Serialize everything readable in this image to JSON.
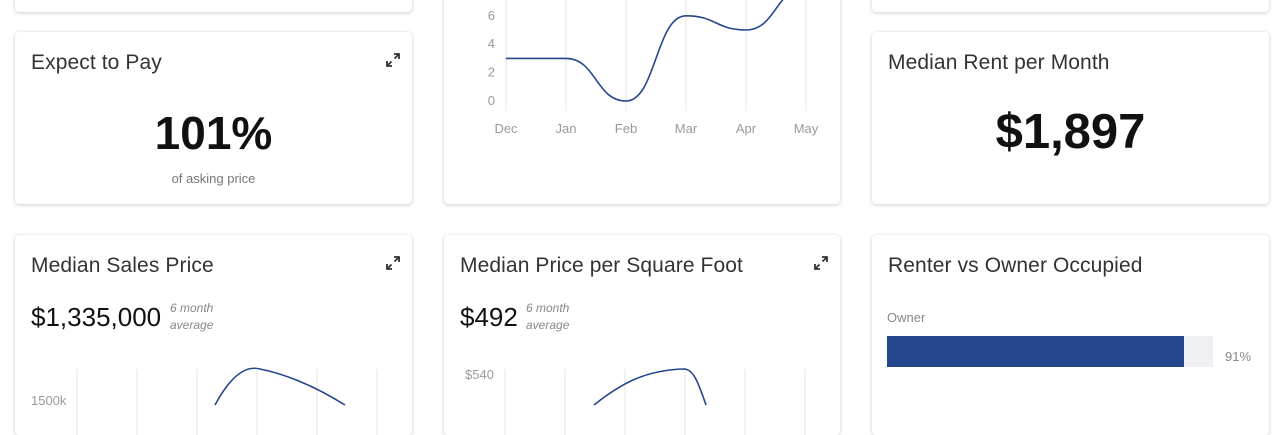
{
  "expect_to_pay": {
    "title": "Expect to Pay",
    "value": "101%",
    "caption": "of asking price"
  },
  "median_rent": {
    "title": "Median Rent per Month",
    "value": "$1,897"
  },
  "median_sales_price": {
    "title": "Median Sales Price",
    "value": "$1,335,000",
    "note_line1": "6 month",
    "note_line2": "average",
    "y_tick_partial": "1500k"
  },
  "median_price_sqft": {
    "title": "Median Price per Square Foot",
    "value": "$492",
    "note_line1": "6 month",
    "note_line2": "average",
    "y_tick_top": "$540"
  },
  "renter_owner": {
    "title": "Renter vs Owner Occupied",
    "owner_label": "Owner",
    "owner_pct_text": "91%",
    "owner_fraction": 0.91
  },
  "chart_data": [
    {
      "type": "line",
      "title": "",
      "categories": [
        "Dec",
        "Jan",
        "Feb",
        "Mar",
        "Apr",
        "May"
      ],
      "values": [
        3,
        3,
        0,
        6,
        5,
        8
      ],
      "y_ticks": [
        "0",
        "2",
        "4",
        "6"
      ],
      "ylim": [
        0,
        8
      ],
      "grid": "vertical",
      "line_color": "#23468c"
    }
  ],
  "icons": {
    "expand": "expand-arrows-icon"
  },
  "colors": {
    "accent": "#23468c",
    "bar_track": "#eef0f4"
  }
}
